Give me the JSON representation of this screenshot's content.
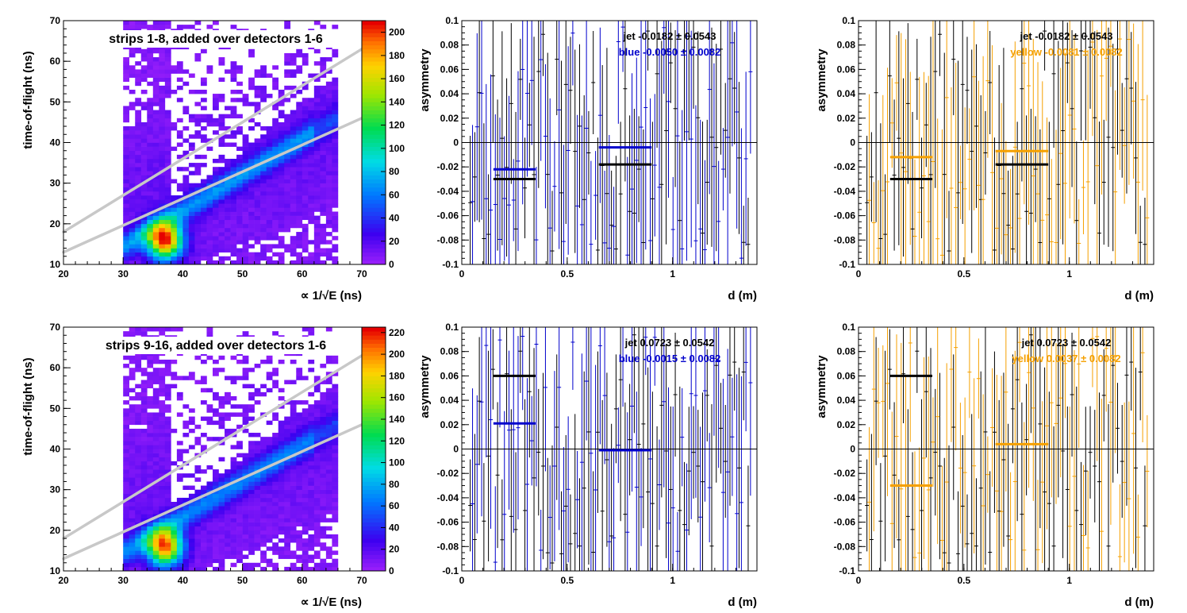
{
  "colors": {
    "blue": "#0000cc",
    "yellow": "#f5a000",
    "black": "#000000",
    "cut": "#c8c8c8"
  },
  "chart_data": [
    {
      "type": "heatmap",
      "title": "strips 1-8, added over detectors 1-6",
      "xlabel": "∝ 1/√E (ns)",
      "ylabel": "time-of-flight (ns)",
      "xlim": [
        20,
        70
      ],
      "ylim": [
        10,
        70
      ],
      "x_ticks": [
        "20",
        "30",
        "40",
        "50",
        "60",
        "70"
      ],
      "y_ticks": [
        "10",
        "20",
        "30",
        "40",
        "50",
        "60",
        "70"
      ],
      "z_ticks": [
        "0",
        "20",
        "40",
        "60",
        "80",
        "100",
        "120",
        "140",
        "160",
        "180",
        "200"
      ],
      "zlim": [
        0,
        210
      ],
      "cut_lines": [
        {
          "x": [
            20,
            70
          ],
          "y": [
            18,
            63
          ]
        },
        {
          "x": [
            20,
            70
          ],
          "y": [
            13,
            46
          ]
        }
      ]
    },
    {
      "type": "scatter",
      "xlabel": "d (m)",
      "ylabel": "asymmetry",
      "xlim": [
        0,
        1.4
      ],
      "ylim": [
        -0.1,
        0.1
      ],
      "x_ticks": [
        "0",
        "0.5",
        "1"
      ],
      "y_ticks": [
        "-0.1",
        "-0.08",
        "-0.06",
        "-0.04",
        "-0.02",
        "0",
        "0.02",
        "0.04",
        "0.06",
        "0.08",
        "0.1"
      ],
      "annotations": [
        {
          "text": "jet -0.0182 ± 0.0543",
          "color": "black"
        },
        {
          "text": "blue -0.0050 ± 0.0082",
          "color": "blue"
        }
      ],
      "series": [
        {
          "color": "black",
          "seed": 11
        },
        {
          "color": "blue",
          "seed": 23
        }
      ],
      "bands": [
        {
          "color": "blue",
          "x": [
            0.15,
            0.35
          ],
          "y": -0.022
        },
        {
          "color": "black",
          "x": [
            0.15,
            0.35
          ],
          "y": -0.03
        },
        {
          "color": "blue",
          "x": [
            0.65,
            0.9
          ],
          "y": -0.004
        },
        {
          "color": "black",
          "x": [
            0.65,
            0.9
          ],
          "y": -0.018
        }
      ]
    },
    {
      "type": "scatter",
      "xlabel": "d (m)",
      "ylabel": "asymmetry",
      "xlim": [
        0,
        1.4
      ],
      "ylim": [
        -0.1,
        0.1
      ],
      "x_ticks": [
        "0",
        "0.5",
        "1"
      ],
      "y_ticks": [
        "-0.1",
        "-0.08",
        "-0.06",
        "-0.04",
        "-0.02",
        "0",
        "0.02",
        "0.04",
        "0.06",
        "0.08",
        "0.1"
      ],
      "annotations": [
        {
          "text": "jet -0.0182 ± 0.0543",
          "color": "black"
        },
        {
          "text": "yellow -0.0081 ± 0.0082",
          "color": "yellow"
        }
      ],
      "series": [
        {
          "color": "black",
          "seed": 11
        },
        {
          "color": "yellow",
          "seed": 37
        }
      ],
      "bands": [
        {
          "color": "yellow",
          "x": [
            0.15,
            0.35
          ],
          "y": -0.012
        },
        {
          "color": "black",
          "x": [
            0.15,
            0.35
          ],
          "y": -0.03
        },
        {
          "color": "yellow",
          "x": [
            0.65,
            0.9
          ],
          "y": -0.007
        },
        {
          "color": "black",
          "x": [
            0.65,
            0.9
          ],
          "y": -0.018
        }
      ]
    },
    {
      "type": "heatmap",
      "title": "strips 9-16, added over detectors 1-6",
      "xlabel": "∝ 1/√E (ns)",
      "ylabel": "time-of-flight (ns)",
      "xlim": [
        20,
        70
      ],
      "ylim": [
        10,
        70
      ],
      "x_ticks": [
        "20",
        "30",
        "40",
        "50",
        "60",
        "70"
      ],
      "y_ticks": [
        "10",
        "20",
        "30",
        "40",
        "50",
        "60",
        "70"
      ],
      "z_ticks": [
        "0",
        "20",
        "40",
        "60",
        "80",
        "100",
        "120",
        "140",
        "160",
        "180",
        "200",
        "220"
      ],
      "zlim": [
        0,
        225
      ],
      "cut_lines": [
        {
          "x": [
            20,
            70
          ],
          "y": [
            18,
            63
          ]
        },
        {
          "x": [
            20,
            70
          ],
          "y": [
            13,
            46
          ]
        }
      ]
    },
    {
      "type": "scatter",
      "xlabel": "d (m)",
      "ylabel": "asymmetry",
      "xlim": [
        0,
        1.4
      ],
      "ylim": [
        -0.1,
        0.1
      ],
      "x_ticks": [
        "0",
        "0.5",
        "1"
      ],
      "y_ticks": [
        "-0.1",
        "-0.08",
        "-0.06",
        "-0.04",
        "-0.02",
        "0",
        "0.02",
        "0.04",
        "0.06",
        "0.08",
        "0.1"
      ],
      "annotations": [
        {
          "text": "jet  0.0723 ± 0.0542",
          "color": "black"
        },
        {
          "text": "blue -0.0015 ± 0.0082",
          "color": "blue"
        }
      ],
      "series": [
        {
          "color": "black",
          "seed": 53
        },
        {
          "color": "blue",
          "seed": 71
        }
      ],
      "bands": [
        {
          "color": "black",
          "x": [
            0.15,
            0.35
          ],
          "y": 0.06
        },
        {
          "color": "blue",
          "x": [
            0.15,
            0.35
          ],
          "y": 0.021
        },
        {
          "color": "blue",
          "x": [
            0.65,
            0.9
          ],
          "y": -0.001
        }
      ]
    },
    {
      "type": "scatter",
      "xlabel": "d (m)",
      "ylabel": "asymmetry",
      "xlim": [
        0,
        1.4
      ],
      "ylim": [
        -0.1,
        0.1
      ],
      "x_ticks": [
        "0",
        "0.5",
        "1"
      ],
      "y_ticks": [
        "-0.1",
        "-0.08",
        "-0.06",
        "-0.04",
        "-0.02",
        "0",
        "0.02",
        "0.04",
        "0.06",
        "0.08",
        "0.1"
      ],
      "annotations": [
        {
          "text": "jet  0.0723 ± 0.0542",
          "color": "black"
        },
        {
          "text": "yellow  0.0037 ± 0.0082",
          "color": "yellow"
        }
      ],
      "series": [
        {
          "color": "black",
          "seed": 53
        },
        {
          "color": "yellow",
          "seed": 89
        }
      ],
      "bands": [
        {
          "color": "black",
          "x": [
            0.15,
            0.35
          ],
          "y": 0.06
        },
        {
          "color": "yellow",
          "x": [
            0.15,
            0.35
          ],
          "y": -0.03
        },
        {
          "color": "yellow",
          "x": [
            0.65,
            0.9
          ],
          "y": 0.004
        }
      ]
    }
  ]
}
